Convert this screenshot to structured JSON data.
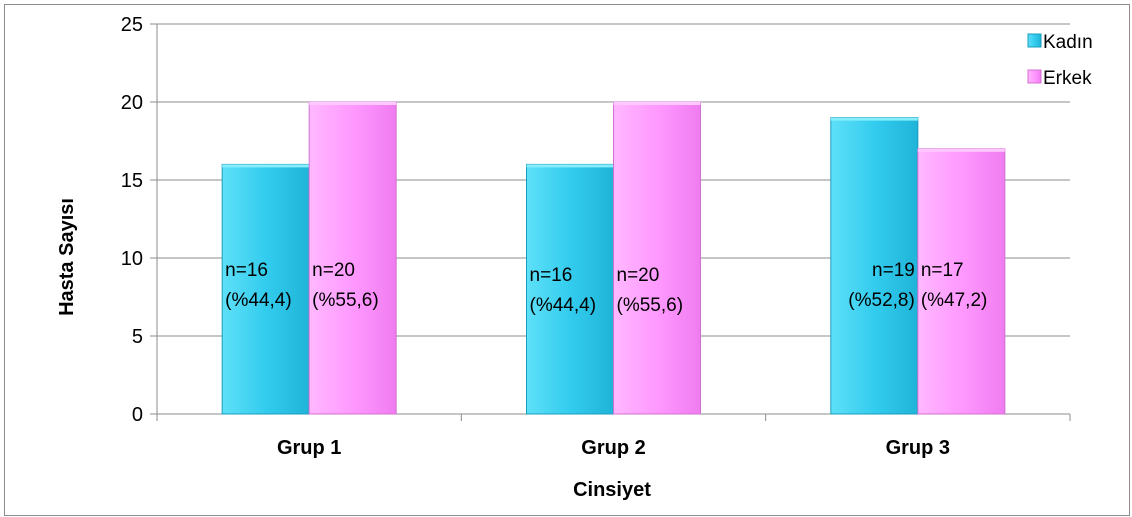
{
  "chart_data": {
    "type": "bar",
    "title": "",
    "xlabel": "Cinsiyet",
    "ylabel": "Hasta Sayısı",
    "ylim": [
      0,
      25
    ],
    "yticks": [
      0,
      5,
      10,
      15,
      20,
      25
    ],
    "grid": true,
    "legend": "top-right",
    "categories": [
      "Grup 1",
      "Grup 2",
      "Grup 3"
    ],
    "series": [
      {
        "name": "Kadın",
        "color": "#33ccee",
        "values": [
          16,
          16,
          19
        ],
        "labels": [
          [
            "n=16",
            "(%44,4)"
          ],
          [
            "n=16",
            "(%44,4)"
          ],
          [
            "n=19",
            "(%52,8)"
          ]
        ]
      },
      {
        "name": "Erkek",
        "color": "#ff99ff",
        "values": [
          20,
          20,
          17
        ],
        "labels": [
          [
            "n=20",
            "(%55,6)"
          ],
          [
            "n=20",
            "(%55,6)"
          ],
          [
            "n=17",
            "(%47,2)"
          ]
        ]
      }
    ]
  }
}
